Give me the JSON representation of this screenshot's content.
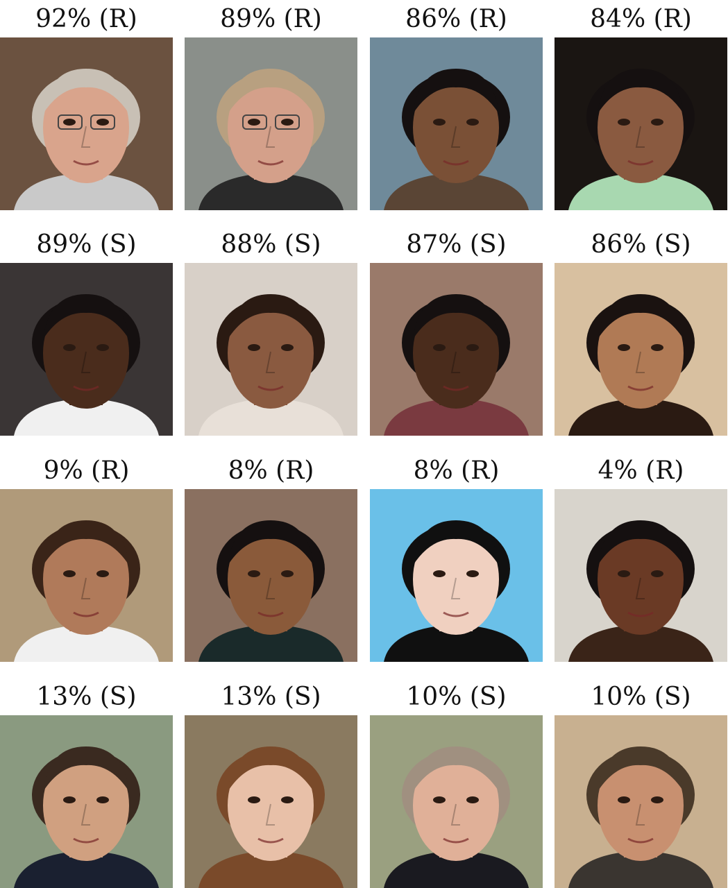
{
  "figure": {
    "items": [
      {
        "label": "92% (R)",
        "colors": {
          "bg": "#6b5240",
          "skin": "#d9a48c",
          "hair": "#c8c0b5",
          "shirt": "#c9c9c9"
        },
        "glasses": true
      },
      {
        "label": "89% (R)",
        "colors": {
          "bg": "#8a8f8a",
          "skin": "#d4a08a",
          "hair": "#b8a080",
          "shirt": "#2a2a2a"
        },
        "glasses": true
      },
      {
        "label": "86% (R)",
        "colors": {
          "bg": "#6f8a9a",
          "skin": "#7a5036",
          "hair": "#151010",
          "shirt": "#5a4535"
        },
        "glasses": false
      },
      {
        "label": "84% (R)",
        "colors": {
          "bg": "#1a1512",
          "skin": "#8a5a40",
          "hair": "#151010",
          "shirt": "#a8d8b0"
        },
        "glasses": false
      },
      {
        "label": "89% (S)",
        "colors": {
          "bg": "#3a3535",
          "skin": "#4a2c1c",
          "hair": "#151010",
          "shirt": "#f0f0f0"
        },
        "glasses": false
      },
      {
        "label": "88% (S)",
        "colors": {
          "bg": "#d8d0c8",
          "skin": "#8a5a40",
          "hair": "#2a1a12",
          "shirt": "#e8e0d8"
        },
        "glasses": false
      },
      {
        "label": "87% (S)",
        "colors": {
          "bg": "#9a7a6a",
          "skin": "#4a2c1c",
          "hair": "#151010",
          "shirt": "#7a3a40"
        },
        "glasses": false
      },
      {
        "label": "86% (S)",
        "colors": {
          "bg": "#d8c0a0",
          "skin": "#b07a55",
          "hair": "#1a1210",
          "shirt": "#2a1a12"
        },
        "glasses": false
      },
      {
        "label": "9% (R)",
        "colors": {
          "bg": "#b09a7a",
          "skin": "#b07a5a",
          "hair": "#3a2418",
          "shirt": "#f0f0f0"
        },
        "glasses": false
      },
      {
        "label": "8% (R)",
        "colors": {
          "bg": "#8a7060",
          "skin": "#8a5a3a",
          "hair": "#151010",
          "shirt": "#1a2a2a"
        },
        "glasses": false
      },
      {
        "label": "8% (R)",
        "colors": {
          "bg": "#6ac0e8",
          "skin": "#f0d0c0",
          "hair": "#101010",
          "shirt": "#101010"
        },
        "glasses": false
      },
      {
        "label": "4% (R)",
        "colors": {
          "bg": "#d8d4cc",
          "skin": "#6a3a25",
          "hair": "#151010",
          "shirt": "#3a2418"
        },
        "glasses": false
      },
      {
        "label": "13% (S)",
        "colors": {
          "bg": "#8a9a80",
          "skin": "#d0a080",
          "hair": "#3a2a20",
          "shirt": "#1a2030"
        },
        "glasses": false
      },
      {
        "label": "13% (S)",
        "colors": {
          "bg": "#8a7a60",
          "skin": "#e8c0a8",
          "hair": "#7a4a2a",
          "shirt": "#7a4a2a"
        },
        "glasses": false
      },
      {
        "label": "10% (S)",
        "colors": {
          "bg": "#9aa080",
          "skin": "#e0b098",
          "hair": "#a09080",
          "shirt": "#1a1a20"
        },
        "glasses": false
      },
      {
        "label": "10% (S)",
        "colors": {
          "bg": "#c8b090",
          "skin": "#c89070",
          "hair": "#4a3a2a",
          "shirt": "#3a3530"
        },
        "glasses": false
      }
    ]
  }
}
